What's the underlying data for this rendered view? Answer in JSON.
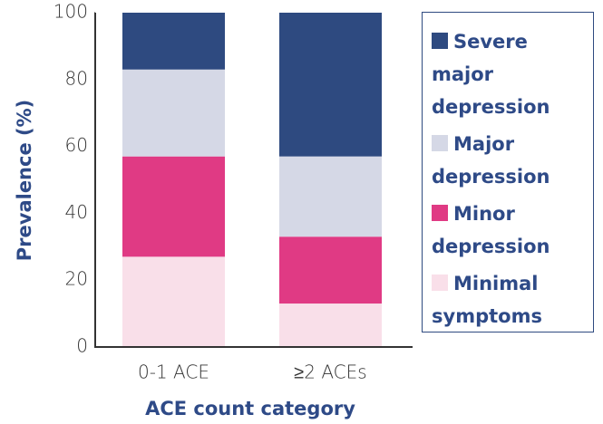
{
  "chart_data": {
    "type": "stacked_bar",
    "categories": [
      "0-1 ACE",
      "≥2 ACEs"
    ],
    "series": [
      {
        "name": "Minimal symptoms",
        "color": "#f9dfe9",
        "values": [
          27,
          13
        ]
      },
      {
        "name": "Minor depression",
        "color": "#e03a84",
        "values": [
          30,
          20
        ]
      },
      {
        "name": "Major depression",
        "color": "#d5d8e6",
        "values": [
          26,
          24
        ]
      },
      {
        "name": "Severe major depression",
        "color": "#2e4a80",
        "values": [
          17,
          43
        ]
      }
    ],
    "ylim": [
      0,
      100
    ],
    "yticks": [
      0,
      20,
      40,
      60,
      80,
      100
    ],
    "y_label": "Prevalence (%)",
    "x_label": "ACE count category"
  }
}
